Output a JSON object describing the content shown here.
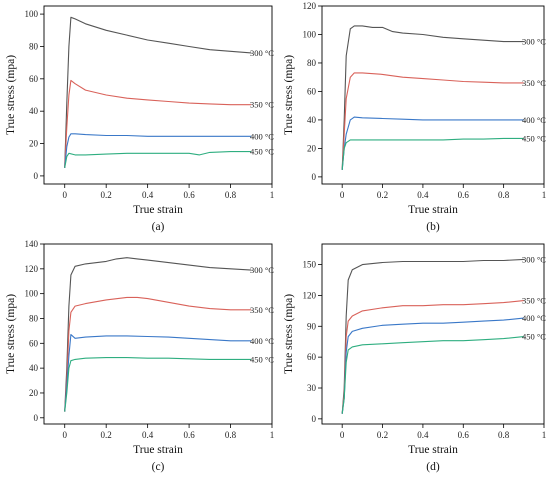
{
  "chart_data": [
    {
      "type": "line",
      "panel_label": "(a)",
      "xlabel": "True strain",
      "ylabel": "True stress (mpa)",
      "xlim": [
        -0.1,
        1.0
      ],
      "ylim": [
        -5,
        105
      ],
      "xticks": [
        0.0,
        0.2,
        0.4,
        0.6,
        0.8,
        1.0
      ],
      "yticks": [
        0,
        20,
        40,
        60,
        80,
        100
      ],
      "series": [
        {
          "name": "300 °C",
          "color": "#555555",
          "x": [
            0.0,
            0.01,
            0.02,
            0.03,
            0.05,
            0.1,
            0.2,
            0.3,
            0.4,
            0.5,
            0.6,
            0.7,
            0.8,
            0.9
          ],
          "y": [
            5,
            45,
            80,
            98,
            97,
            94,
            90,
            87,
            84,
            82,
            80,
            78,
            77,
            76
          ]
        },
        {
          "name": "350 °C",
          "color": "#d9625a",
          "x": [
            0.0,
            0.01,
            0.02,
            0.03,
            0.05,
            0.1,
            0.2,
            0.3,
            0.4,
            0.5,
            0.6,
            0.7,
            0.8,
            0.9
          ],
          "y": [
            5,
            30,
            50,
            59,
            57,
            53,
            50,
            48,
            47,
            46,
            45,
            44.5,
            44,
            44
          ]
        },
        {
          "name": "400 °C",
          "color": "#3a78c8",
          "x": [
            0.0,
            0.01,
            0.02,
            0.03,
            0.05,
            0.1,
            0.2,
            0.3,
            0.4,
            0.5,
            0.6,
            0.7,
            0.8,
            0.9
          ],
          "y": [
            5,
            18,
            24,
            26,
            26,
            25.5,
            25,
            25,
            24.5,
            24.5,
            24.5,
            24.5,
            24.5,
            24.5
          ]
        },
        {
          "name": "450 °C",
          "color": "#2fae80",
          "x": [
            0.0,
            0.01,
            0.02,
            0.05,
            0.1,
            0.2,
            0.3,
            0.4,
            0.5,
            0.6,
            0.65,
            0.7,
            0.8,
            0.9
          ],
          "y": [
            5,
            12,
            14,
            13,
            13,
            13.5,
            14,
            14,
            14,
            14,
            13,
            14.5,
            15,
            15
          ]
        }
      ]
    },
    {
      "type": "line",
      "panel_label": "(b)",
      "xlabel": "True strain",
      "ylabel": "True stress (mpa)",
      "xlim": [
        -0.1,
        1.0
      ],
      "ylim": [
        -5,
        120
      ],
      "xticks": [
        0.0,
        0.2,
        0.4,
        0.6,
        0.8,
        1.0
      ],
      "yticks": [
        0,
        20,
        40,
        60,
        80,
        100,
        120
      ],
      "series": [
        {
          "name": "300 °C",
          "color": "#555555",
          "x": [
            0.0,
            0.01,
            0.02,
            0.04,
            0.06,
            0.1,
            0.15,
            0.2,
            0.25,
            0.3,
            0.4,
            0.5,
            0.6,
            0.7,
            0.8,
            0.9
          ],
          "y": [
            5,
            40,
            85,
            104,
            106,
            106,
            105,
            105,
            102,
            101,
            100,
            98,
            97,
            96,
            95,
            95
          ]
        },
        {
          "name": "350 °C",
          "color": "#d9625a",
          "x": [
            0.0,
            0.01,
            0.02,
            0.04,
            0.06,
            0.1,
            0.2,
            0.3,
            0.4,
            0.5,
            0.6,
            0.7,
            0.8,
            0.9
          ],
          "y": [
            5,
            30,
            55,
            70,
            73,
            73,
            72,
            70,
            69,
            68,
            67,
            66.5,
            66,
            66
          ]
        },
        {
          "name": "400 °C",
          "color": "#3a78c8",
          "x": [
            0.0,
            0.01,
            0.02,
            0.04,
            0.06,
            0.1,
            0.2,
            0.3,
            0.4,
            0.5,
            0.6,
            0.7,
            0.8,
            0.9
          ],
          "y": [
            5,
            20,
            30,
            40,
            42,
            41.5,
            41,
            40.5,
            40,
            40,
            40,
            40,
            40,
            40
          ]
        },
        {
          "name": "450 °C",
          "color": "#2fae80",
          "x": [
            0.0,
            0.01,
            0.02,
            0.04,
            0.06,
            0.1,
            0.2,
            0.3,
            0.4,
            0.5,
            0.6,
            0.7,
            0.8,
            0.9
          ],
          "y": [
            5,
            20,
            24,
            26,
            26,
            26,
            26,
            26,
            26,
            26,
            26.5,
            26.5,
            27,
            27
          ]
        }
      ]
    },
    {
      "type": "line",
      "panel_label": "(c)",
      "xlabel": "True strain",
      "ylabel": "True stress (mpa)",
      "xlim": [
        -0.1,
        1.0
      ],
      "ylim": [
        -5,
        140
      ],
      "xticks": [
        0.0,
        0.2,
        0.4,
        0.6,
        0.8,
        1.0
      ],
      "yticks": [
        0,
        20,
        40,
        60,
        80,
        100,
        120,
        140
      ],
      "series": [
        {
          "name": "300 °C",
          "color": "#555555",
          "x": [
            0.0,
            0.01,
            0.02,
            0.03,
            0.05,
            0.1,
            0.2,
            0.25,
            0.3,
            0.35,
            0.4,
            0.5,
            0.6,
            0.7,
            0.8,
            0.9
          ],
          "y": [
            5,
            40,
            90,
            115,
            122,
            124,
            126,
            128,
            129,
            128,
            127,
            125,
            123,
            121,
            120,
            119
          ]
        },
        {
          "name": "350 °C",
          "color": "#d9625a",
          "x": [
            0.0,
            0.01,
            0.02,
            0.03,
            0.05,
            0.1,
            0.2,
            0.3,
            0.35,
            0.4,
            0.5,
            0.6,
            0.7,
            0.8,
            0.9
          ],
          "y": [
            5,
            30,
            70,
            85,
            90,
            92,
            95,
            97,
            97,
            96,
            93,
            90,
            88,
            87,
            87
          ]
        },
        {
          "name": "400 °C",
          "color": "#3a78c8",
          "x": [
            0.0,
            0.01,
            0.02,
            0.03,
            0.05,
            0.1,
            0.2,
            0.3,
            0.4,
            0.5,
            0.6,
            0.7,
            0.8,
            0.9
          ],
          "y": [
            5,
            25,
            50,
            67,
            64,
            65,
            66,
            66,
            65.5,
            65,
            64,
            63,
            62,
            62
          ]
        },
        {
          "name": "450 °C",
          "color": "#2fae80",
          "x": [
            0.0,
            0.01,
            0.02,
            0.03,
            0.05,
            0.1,
            0.2,
            0.3,
            0.4,
            0.5,
            0.6,
            0.7,
            0.8,
            0.9
          ],
          "y": [
            5,
            20,
            40,
            46,
            47,
            48,
            48.5,
            48.5,
            48,
            48,
            47.5,
            47,
            47,
            47
          ]
        }
      ]
    },
    {
      "type": "line",
      "panel_label": "(d)",
      "xlabel": "True strain",
      "ylabel": "True stress (mpa)",
      "xlim": [
        -0.1,
        1.0
      ],
      "ylim": [
        -5,
        170
      ],
      "xticks": [
        0.0,
        0.2,
        0.4,
        0.6,
        0.8,
        1.0
      ],
      "yticks": [
        0,
        30,
        60,
        90,
        120,
        150
      ],
      "series": [
        {
          "name": "300 °C",
          "color": "#555555",
          "x": [
            0.0,
            0.01,
            0.02,
            0.03,
            0.05,
            0.1,
            0.2,
            0.3,
            0.4,
            0.5,
            0.6,
            0.7,
            0.8,
            0.9
          ],
          "y": [
            5,
            30,
            100,
            135,
            145,
            150,
            152,
            153,
            153,
            153,
            153,
            154,
            154,
            155
          ]
        },
        {
          "name": "350 °C",
          "color": "#d9625a",
          "x": [
            0.0,
            0.01,
            0.02,
            0.03,
            0.05,
            0.1,
            0.2,
            0.3,
            0.4,
            0.5,
            0.6,
            0.7,
            0.8,
            0.9
          ],
          "y": [
            5,
            25,
            80,
            95,
            100,
            105,
            108,
            110,
            110,
            111,
            111,
            112,
            113,
            115
          ]
        },
        {
          "name": "400 °C",
          "color": "#3a78c8",
          "x": [
            0.0,
            0.01,
            0.02,
            0.03,
            0.05,
            0.1,
            0.2,
            0.3,
            0.4,
            0.5,
            0.6,
            0.7,
            0.8,
            0.9
          ],
          "y": [
            5,
            20,
            65,
            80,
            85,
            88,
            91,
            92,
            93,
            93,
            94,
            95,
            96,
            98
          ]
        },
        {
          "name": "450 °C",
          "color": "#2fae80",
          "x": [
            0.0,
            0.01,
            0.02,
            0.03,
            0.05,
            0.1,
            0.2,
            0.3,
            0.4,
            0.5,
            0.6,
            0.7,
            0.8,
            0.9
          ],
          "y": [
            5,
            20,
            55,
            67,
            70,
            72,
            73,
            74,
            75,
            76,
            76,
            77,
            78,
            80
          ]
        }
      ]
    }
  ]
}
